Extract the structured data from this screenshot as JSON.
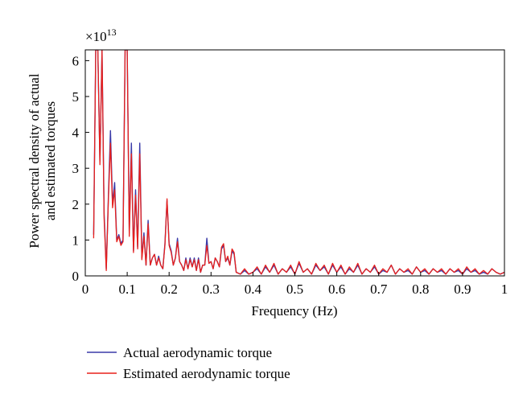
{
  "chart_data": {
    "type": "line",
    "exponent_base": "×10",
    "exponent_power": "13",
    "xlabel": "Frequency (Hz)",
    "ylabel_lines": [
      "Power spectral density of actual",
      "and estimated torques"
    ],
    "xlim": [
      0,
      1
    ],
    "ylim": [
      0,
      6.3
    ],
    "x_ticks": [
      {
        "value": 0,
        "label": "0"
      },
      {
        "value": 0.1,
        "label": "0.1"
      },
      {
        "value": 0.2,
        "label": "0.2"
      },
      {
        "value": 0.3,
        "label": "0.3"
      },
      {
        "value": 0.4,
        "label": "0.4"
      },
      {
        "value": 0.5,
        "label": "0.5"
      },
      {
        "value": 0.6,
        "label": "0.6"
      },
      {
        "value": 0.7,
        "label": "0.7"
      },
      {
        "value": 0.8,
        "label": "0.8"
      },
      {
        "value": 0.9,
        "label": "0.9"
      },
      {
        "value": 1,
        "label": "1"
      }
    ],
    "y_ticks": [
      {
        "value": 0,
        "label": "0"
      },
      {
        "value": 1,
        "label": "1"
      },
      {
        "value": 2,
        "label": "2"
      },
      {
        "value": 3,
        "label": "3"
      },
      {
        "value": 4,
        "label": "4"
      },
      {
        "value": 5,
        "label": "5"
      },
      {
        "value": 6,
        "label": "6"
      }
    ],
    "grid": false,
    "legend_position": "bottom-left",
    "series": [
      {
        "name": "Actual aerodynamic torque",
        "color": "#3a3aa8",
        "x": [
          0.02,
          0.025,
          0.03,
          0.035,
          0.04,
          0.045,
          0.05,
          0.055,
          0.06,
          0.065,
          0.07,
          0.075,
          0.08,
          0.085,
          0.09,
          0.095,
          0.1,
          0.105,
          0.11,
          0.115,
          0.12,
          0.125,
          0.13,
          0.135,
          0.14,
          0.145,
          0.15,
          0.155,
          0.16,
          0.165,
          0.17,
          0.175,
          0.18,
          0.185,
          0.19,
          0.195,
          0.2,
          0.205,
          0.21,
          0.215,
          0.22,
          0.225,
          0.23,
          0.235,
          0.24,
          0.245,
          0.25,
          0.255,
          0.26,
          0.265,
          0.27,
          0.275,
          0.28,
          0.285,
          0.29,
          0.295,
          0.3,
          0.305,
          0.31,
          0.315,
          0.32,
          0.325,
          0.33,
          0.335,
          0.34,
          0.345,
          0.35,
          0.355,
          0.36,
          0.37,
          0.38,
          0.39,
          0.4,
          0.41,
          0.42,
          0.43,
          0.44,
          0.45,
          0.46,
          0.47,
          0.48,
          0.49,
          0.5,
          0.51,
          0.52,
          0.53,
          0.54,
          0.55,
          0.56,
          0.57,
          0.58,
          0.59,
          0.6,
          0.61,
          0.62,
          0.63,
          0.64,
          0.65,
          0.66,
          0.67,
          0.68,
          0.69,
          0.7,
          0.71,
          0.72,
          0.73,
          0.74,
          0.75,
          0.76,
          0.77,
          0.78,
          0.79,
          0.8,
          0.81,
          0.82,
          0.83,
          0.84,
          0.85,
          0.86,
          0.87,
          0.88,
          0.89,
          0.9,
          0.91,
          0.92,
          0.93,
          0.94,
          0.95,
          0.96,
          0.97,
          0.98,
          0.99,
          1.0
        ],
        "values": [
          1.15,
          6.3,
          6.3,
          3.2,
          6.3,
          1.75,
          0.2,
          2.2,
          4.05,
          2.0,
          2.6,
          1.0,
          1.15,
          0.9,
          1.0,
          6.3,
          6.3,
          1.2,
          3.7,
          0.7,
          2.4,
          0.8,
          3.7,
          0.5,
          1.2,
          0.3,
          1.55,
          0.3,
          0.5,
          0.6,
          0.3,
          0.55,
          0.3,
          0.2,
          0.9,
          2.1,
          0.9,
          0.7,
          0.3,
          0.5,
          1.05,
          0.4,
          0.3,
          0.15,
          0.5,
          0.2,
          0.5,
          0.25,
          0.5,
          0.15,
          0.5,
          0.1,
          0.3,
          0.3,
          1.05,
          0.35,
          0.4,
          0.2,
          0.5,
          0.4,
          0.25,
          0.75,
          0.85,
          0.4,
          0.5,
          0.3,
          0.7,
          0.6,
          0.1,
          0.05,
          0.15,
          0.05,
          0.1,
          0.2,
          0.05,
          0.25,
          0.1,
          0.3,
          0.05,
          0.2,
          0.1,
          0.25,
          0.05,
          0.35,
          0.1,
          0.2,
          0.05,
          0.3,
          0.15,
          0.25,
          0.05,
          0.3,
          0.1,
          0.25,
          0.05,
          0.2,
          0.1,
          0.3,
          0.05,
          0.2,
          0.1,
          0.25,
          0.05,
          0.15,
          0.1,
          0.3,
          0.05,
          0.2,
          0.1,
          0.15,
          0.05,
          0.25,
          0.1,
          0.15,
          0.05,
          0.2,
          0.1,
          0.15,
          0.05,
          0.2,
          0.1,
          0.15,
          0.05,
          0.2,
          0.1,
          0.15,
          0.05,
          0.1,
          0.05,
          0.2,
          0.1,
          0.05,
          0.1
        ]
      },
      {
        "name": "Estimated aerodynamic torque",
        "color": "#e8201c",
        "x": [
          0.02,
          0.025,
          0.03,
          0.035,
          0.04,
          0.045,
          0.05,
          0.055,
          0.06,
          0.065,
          0.07,
          0.075,
          0.08,
          0.085,
          0.09,
          0.095,
          0.1,
          0.105,
          0.11,
          0.115,
          0.12,
          0.125,
          0.13,
          0.135,
          0.14,
          0.145,
          0.15,
          0.155,
          0.16,
          0.165,
          0.17,
          0.175,
          0.18,
          0.185,
          0.19,
          0.195,
          0.2,
          0.205,
          0.21,
          0.215,
          0.22,
          0.225,
          0.23,
          0.235,
          0.24,
          0.245,
          0.25,
          0.255,
          0.26,
          0.265,
          0.27,
          0.275,
          0.28,
          0.285,
          0.29,
          0.295,
          0.3,
          0.305,
          0.31,
          0.315,
          0.32,
          0.325,
          0.33,
          0.335,
          0.34,
          0.345,
          0.35,
          0.355,
          0.36,
          0.37,
          0.38,
          0.39,
          0.4,
          0.41,
          0.42,
          0.43,
          0.44,
          0.45,
          0.46,
          0.47,
          0.48,
          0.49,
          0.5,
          0.51,
          0.52,
          0.53,
          0.54,
          0.55,
          0.56,
          0.57,
          0.58,
          0.59,
          0.6,
          0.61,
          0.62,
          0.63,
          0.64,
          0.65,
          0.66,
          0.67,
          0.68,
          0.69,
          0.7,
          0.71,
          0.72,
          0.73,
          0.74,
          0.75,
          0.76,
          0.77,
          0.78,
          0.79,
          0.8,
          0.81,
          0.82,
          0.83,
          0.84,
          0.85,
          0.86,
          0.87,
          0.88,
          0.89,
          0.9,
          0.91,
          0.92,
          0.93,
          0.94,
          0.95,
          0.96,
          0.97,
          0.98,
          0.99,
          1.0
        ],
        "values": [
          1.05,
          6.3,
          6.3,
          3.1,
          6.3,
          1.6,
          0.15,
          2.1,
          3.7,
          1.9,
          2.4,
          0.95,
          1.1,
          0.85,
          0.95,
          6.3,
          6.3,
          1.1,
          3.4,
          0.65,
          2.25,
          0.75,
          3.4,
          0.45,
          1.1,
          0.3,
          1.45,
          0.3,
          0.5,
          0.6,
          0.3,
          0.5,
          0.3,
          0.2,
          0.85,
          2.15,
          0.85,
          0.65,
          0.3,
          0.5,
          0.95,
          0.4,
          0.3,
          0.15,
          0.45,
          0.2,
          0.45,
          0.25,
          0.45,
          0.15,
          0.45,
          0.1,
          0.3,
          0.3,
          0.85,
          0.35,
          0.4,
          0.2,
          0.5,
          0.4,
          0.25,
          0.8,
          0.9,
          0.4,
          0.55,
          0.3,
          0.75,
          0.65,
          0.1,
          0.05,
          0.2,
          0.05,
          0.1,
          0.25,
          0.05,
          0.3,
          0.1,
          0.35,
          0.05,
          0.2,
          0.1,
          0.3,
          0.05,
          0.4,
          0.1,
          0.2,
          0.05,
          0.35,
          0.15,
          0.3,
          0.05,
          0.35,
          0.1,
          0.3,
          0.05,
          0.25,
          0.1,
          0.35,
          0.05,
          0.2,
          0.1,
          0.3,
          0.05,
          0.2,
          0.1,
          0.3,
          0.05,
          0.2,
          0.1,
          0.2,
          0.05,
          0.25,
          0.1,
          0.2,
          0.05,
          0.2,
          0.1,
          0.2,
          0.05,
          0.2,
          0.1,
          0.2,
          0.05,
          0.25,
          0.1,
          0.2,
          0.05,
          0.15,
          0.05,
          0.2,
          0.1,
          0.05,
          0.1
        ]
      }
    ]
  }
}
